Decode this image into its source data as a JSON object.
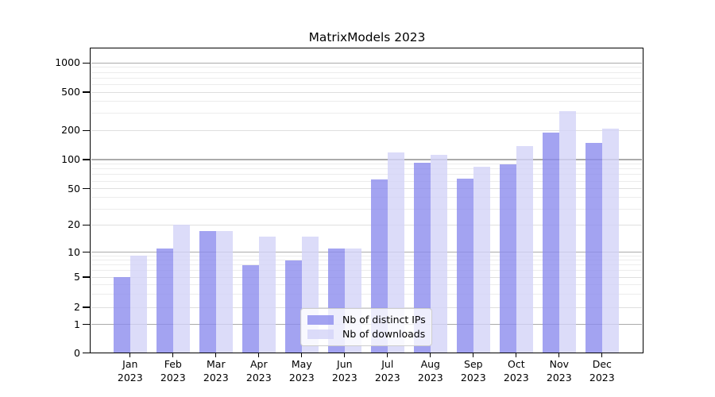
{
  "figure": {
    "title": "MatrixModels 2023"
  },
  "chart_data": {
    "type": "bar",
    "title": "MatrixModels 2023",
    "categories": [
      "Jan 2023",
      "Feb 2023",
      "Mar 2023",
      "Apr 2023",
      "May 2023",
      "Jun 2023",
      "Jul 2023",
      "Aug 2023",
      "Sep 2023",
      "Oct 2023",
      "Nov 2023",
      "Dec 2023"
    ],
    "series": [
      {
        "name": "Nb of distinct IPs",
        "color": "#8c8ced",
        "values": [
          5,
          11,
          17,
          7,
          8,
          11,
          62,
          93,
          63,
          90,
          190,
          150
        ]
      },
      {
        "name": "Nb of downloads",
        "color": "#d3d3f7",
        "values": [
          9,
          20,
          17,
          15,
          15,
          11,
          118,
          112,
          85,
          138,
          320,
          210
        ]
      }
    ],
    "y_axis": {
      "scale": "quasi-log with zero baseline",
      "tick_labels": [
        "0",
        "1",
        "2",
        "5",
        "10",
        "20",
        "50",
        "100",
        "200",
        "500",
        "1000"
      ],
      "ticks": [
        0,
        1,
        2,
        5,
        10,
        20,
        50,
        100,
        200,
        500,
        1000
      ],
      "minor_ticks": [
        3,
        4,
        6,
        7,
        8,
        9,
        30,
        40,
        60,
        70,
        80,
        90,
        300,
        400,
        600,
        700,
        800,
        900
      ]
    },
    "legend": {
      "entries": [
        "Nb of distinct IPs",
        "Nb of downloads"
      ],
      "position": "bottom-center-inside"
    },
    "grid": true,
    "colors": {
      "bar_distinct_ips": "#8c8ced",
      "bar_downloads": "#d3d3f7",
      "major_gridline": "#ababab",
      "labeled_gridline": "#dfdfdf",
      "minor_gridline": "#ececec",
      "axis": "#000000"
    }
  }
}
